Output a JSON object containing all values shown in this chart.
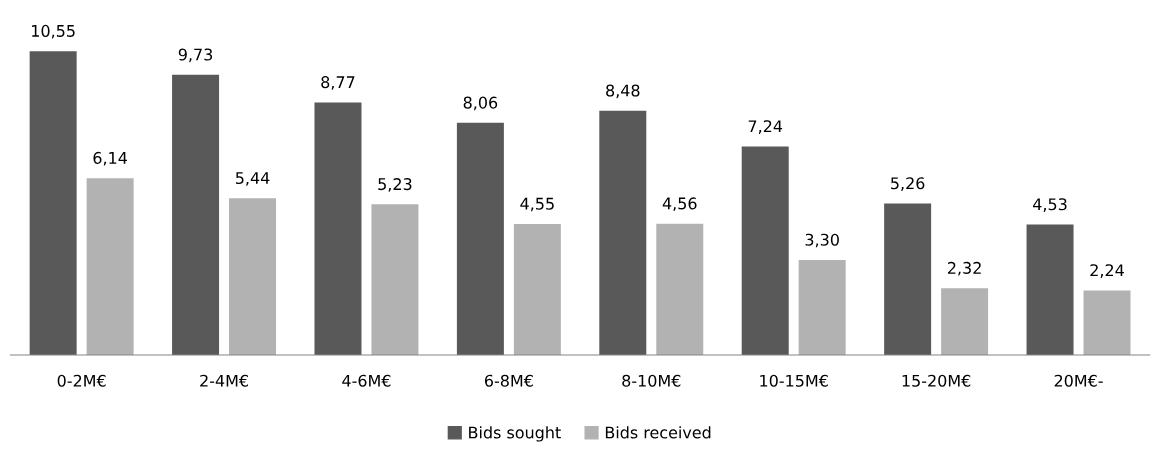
{
  "chart_data": {
    "type": "bar",
    "categories": [
      "0-2M€",
      "2-4M€",
      "4-6M€",
      "6-8M€",
      "8-10M€",
      "10-15M€",
      "15-20M€",
      "20M€-"
    ],
    "series": [
      {
        "name": "Bids sought",
        "color": "#595959",
        "values": [
          10.55,
          9.73,
          8.77,
          8.06,
          8.48,
          7.24,
          5.26,
          4.53
        ],
        "value_labels": [
          "10,55",
          "9,73",
          "8,77",
          "8,06",
          "8,48",
          "7,24",
          "5,26",
          "4,53"
        ]
      },
      {
        "name": "Bids received",
        "color": "#b2b2b2",
        "values": [
          6.14,
          5.44,
          5.23,
          4.55,
          4.56,
          3.3,
          2.32,
          2.24
        ],
        "value_labels": [
          "6,14",
          "5,44",
          "5,23",
          "4,55",
          "4,56",
          "3,30",
          "2,32",
          "2,24"
        ]
      }
    ],
    "legend": "bottom",
    "grid": false,
    "tick_labels": "x"
  }
}
